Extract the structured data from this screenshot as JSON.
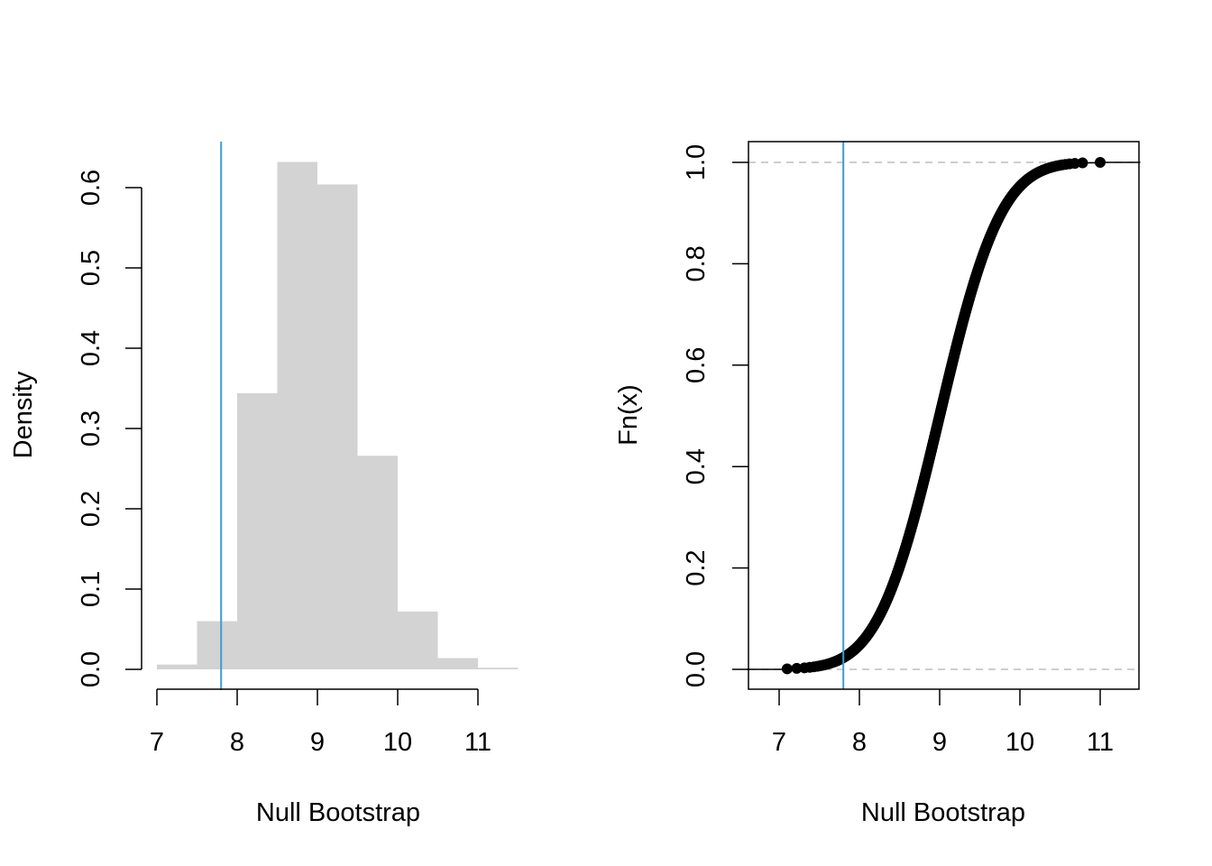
{
  "colors": {
    "bar_fill": "#d3d3d3",
    "vline": "#3f9bd6",
    "axis": "#000000",
    "points": "#000000",
    "reference_dashed": "#bdbdbd"
  },
  "chart_data": [
    {
      "type": "bar",
      "subtype": "histogram",
      "title": "",
      "xlabel": "Null Bootstrap",
      "ylabel": "Density",
      "bins": [
        {
          "x0": 7.0,
          "x1": 7.5,
          "density": 0.006
        },
        {
          "x0": 7.5,
          "x1": 8.0,
          "density": 0.06
        },
        {
          "x0": 8.0,
          "x1": 8.5,
          "density": 0.344
        },
        {
          "x0": 8.5,
          "x1": 9.0,
          "density": 0.632
        },
        {
          "x0": 9.0,
          "x1": 9.5,
          "density": 0.604
        },
        {
          "x0": 9.5,
          "x1": 10.0,
          "density": 0.266
        },
        {
          "x0": 10.0,
          "x1": 10.5,
          "density": 0.072
        },
        {
          "x0": 10.5,
          "x1": 11.0,
          "density": 0.014
        },
        {
          "x0": 11.0,
          "x1": 11.5,
          "density": 0.002
        }
      ],
      "xlim": [
        7.0,
        11.5
      ],
      "ylim": [
        0,
        0.66
      ],
      "x_ticks": [
        "7",
        "8",
        "9",
        "10",
        "11"
      ],
      "y_ticks": [
        "0.0",
        "0.1",
        "0.2",
        "0.3",
        "0.4",
        "0.5",
        "0.6"
      ],
      "vline": 7.8
    },
    {
      "type": "scatter",
      "subtype": "ecdf",
      "title": "",
      "xlabel": "Null Bootstrap",
      "ylabel": "Fn(x)",
      "mean": 9.0,
      "sd": 0.6,
      "min": 7.1,
      "max": 11.0,
      "xlim": [
        6.6,
        11.5
      ],
      "ylim": [
        -0.04,
        1.04
      ],
      "x_ticks": [
        "7",
        "8",
        "9",
        "10",
        "11"
      ],
      "y_ticks": [
        "0.0",
        "0.2",
        "0.4",
        "0.6",
        "0.8",
        "1.0"
      ],
      "reference_lines_y": [
        0,
        1
      ],
      "vline": 7.8,
      "boxed": true
    }
  ]
}
